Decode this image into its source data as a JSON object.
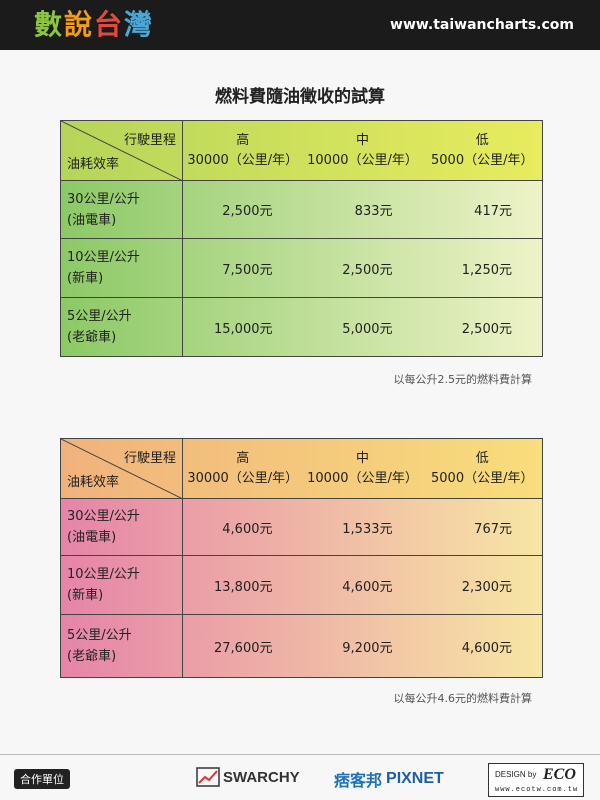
{
  "header": {
    "brand_chars": [
      "數",
      "說",
      "台",
      "灣"
    ],
    "url": "www.taiwancharts.com"
  },
  "page_title": "燃料費隨油徵收的試算",
  "tables": [
    {
      "corner_top": "行駛里程",
      "corner_bottom": "油耗效率",
      "columns": [
        {
          "level": "高",
          "mileage": "30000（公里/年）"
        },
        {
          "level": "中",
          "mileage": "10000（公里/年）"
        },
        {
          "level": "低",
          "mileage": "5000（公里/年）"
        }
      ],
      "rows": [
        {
          "eff": "30公里/公升",
          "type": "(油電車)",
          "values": [
            "2,500元",
            "833元",
            "417元"
          ]
        },
        {
          "eff": "10公里/公升",
          "type": "(新車)",
          "values": [
            "7,500元",
            "2,500元",
            "1,250元"
          ]
        },
        {
          "eff": "5公里/公升",
          "type": "(老爺車)",
          "values": [
            "15,000元",
            "5,000元",
            "2,500元"
          ]
        }
      ],
      "note": "以每公升2.5元的燃料費計算"
    },
    {
      "corner_top": "行駛里程",
      "corner_bottom": "油耗效率",
      "columns": [
        {
          "level": "高",
          "mileage": "30000（公里/年）"
        },
        {
          "level": "中",
          "mileage": "10000（公里/年）"
        },
        {
          "level": "低",
          "mileage": "5000（公里/年）"
        }
      ],
      "rows": [
        {
          "eff": "30公里/公升",
          "type": "(油電車)",
          "values": [
            "4,600元",
            "1,533元",
            "767元"
          ]
        },
        {
          "eff": "10公里/公升",
          "type": "(新車)",
          "values": [
            "13,800元",
            "4,600元",
            "2,300元"
          ]
        },
        {
          "eff": "5公里/公升",
          "type": "(老爺車)",
          "values": [
            "27,600元",
            "9,200元",
            "4,600元"
          ]
        }
      ],
      "note": "以每公升4.6元的燃料費計算"
    }
  ],
  "footer": {
    "partner_label": "合作單位",
    "swarchy": "SWARCHY",
    "pixnet_cn": "痞客邦",
    "pixnet_en": "PIXNET",
    "eco_design": "DESIGN by",
    "eco_mark": "ECO",
    "eco_url": "www.ecotw.com.tw"
  },
  "colors": {
    "t1_header_left": "#b5d55a",
    "t1_header_right": "#e8ec5e",
    "t1_body_left": "#8cc966",
    "t1_body_right": "#eef3c8",
    "t2_header_left": "#f0b27c",
    "t2_header_right": "#f8de7c",
    "t2_body_left": "#e684a8",
    "t2_body_right": "#f7e6a4"
  }
}
